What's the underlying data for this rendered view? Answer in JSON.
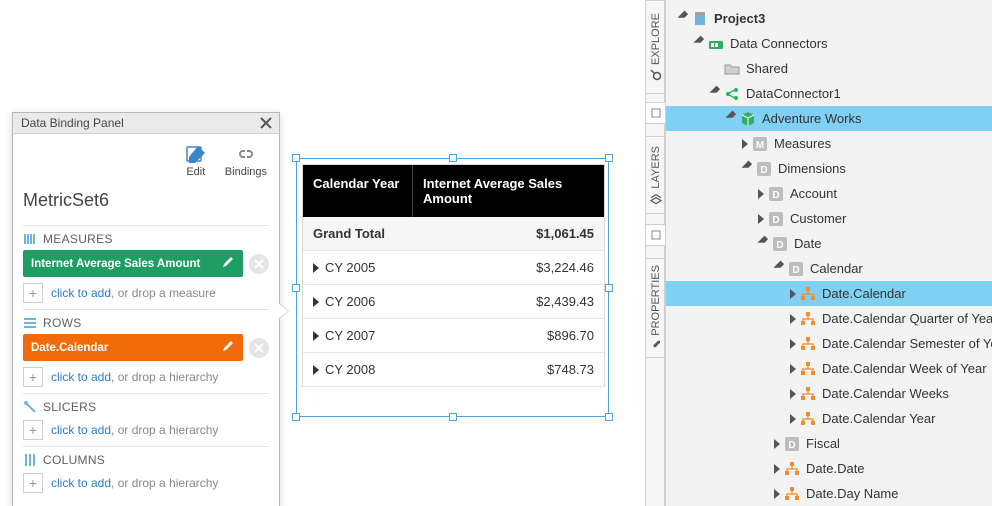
{
  "panel": {
    "title": "Data Binding Panel",
    "toolbar": {
      "edit": "Edit",
      "bindings": "Bindings"
    },
    "metricset": "MetricSet6",
    "measures_label": "MEASURES",
    "rows_label": "ROWS",
    "slicers_label": "SLICERS",
    "columns_label": "COLUMNS",
    "measure_chip": "Internet Average Sales Amount",
    "rows_chip": "Date.Calendar",
    "add_link": "click to add",
    "add_measure_tail": ", or drop a measure",
    "add_hierarchy_tail": ", or drop a hierarchy",
    "colors": {
      "measure_chip": "#1e9e63",
      "row_chip": "#f26a0a"
    }
  },
  "table": {
    "columns": [
      "Calendar Year",
      "Internet Average Sales Amount"
    ],
    "grand_total_label": "Grand Total",
    "grand_total_value": "$1,061.45",
    "rows": [
      {
        "label": "CY 2005",
        "value": "$3,224.46"
      },
      {
        "label": "CY 2006",
        "value": "$2,439.43"
      },
      {
        "label": "CY 2007",
        "value": "$896.70"
      },
      {
        "label": "CY 2008",
        "value": "$748.73"
      }
    ],
    "selection_color": "#4fa3e0"
  },
  "side_tabs": {
    "explore": "EXPLORE",
    "layers": "LAYERS",
    "properties": "PROPERTIES"
  },
  "tree": {
    "selected_bg": "#7fd0f2",
    "hierarchy_color": "#f28c28",
    "items": [
      {
        "depth": 0,
        "exp": "open",
        "icon": "project",
        "label": "Project3",
        "bold": true
      },
      {
        "depth": 1,
        "exp": "open",
        "icon": "connector",
        "label": "Data Connectors"
      },
      {
        "depth": 2,
        "exp": "none",
        "icon": "folder",
        "label": "Shared"
      },
      {
        "depth": 2,
        "exp": "open",
        "icon": "dc",
        "label": "DataConnector1"
      },
      {
        "depth": 3,
        "exp": "open",
        "icon": "cube",
        "label": "Adventure Works",
        "selected": true
      },
      {
        "depth": 4,
        "exp": "closed",
        "icon": "m",
        "label": "Measures"
      },
      {
        "depth": 4,
        "exp": "open",
        "icon": "d",
        "label": "Dimensions"
      },
      {
        "depth": 5,
        "exp": "closed",
        "icon": "d",
        "label": "Account"
      },
      {
        "depth": 5,
        "exp": "closed",
        "icon": "d",
        "label": "Customer"
      },
      {
        "depth": 5,
        "exp": "open",
        "icon": "d",
        "label": "Date"
      },
      {
        "depth": 6,
        "exp": "open",
        "icon": "d",
        "label": "Calendar"
      },
      {
        "depth": 7,
        "exp": "closed",
        "icon": "hier",
        "label": "Date.Calendar",
        "selected": true
      },
      {
        "depth": 7,
        "exp": "closed",
        "icon": "hier",
        "label": "Date.Calendar Quarter of Year"
      },
      {
        "depth": 7,
        "exp": "closed",
        "icon": "hier",
        "label": "Date.Calendar Semester of Year"
      },
      {
        "depth": 7,
        "exp": "closed",
        "icon": "hier",
        "label": "Date.Calendar Week of Year"
      },
      {
        "depth": 7,
        "exp": "closed",
        "icon": "hier",
        "label": "Date.Calendar Weeks"
      },
      {
        "depth": 7,
        "exp": "closed",
        "icon": "hier",
        "label": "Date.Calendar Year"
      },
      {
        "depth": 6,
        "exp": "closed",
        "icon": "d",
        "label": "Fiscal"
      },
      {
        "depth": 6,
        "exp": "closed",
        "icon": "hier",
        "label": "Date.Date"
      },
      {
        "depth": 6,
        "exp": "closed",
        "icon": "hier",
        "label": "Date.Day Name"
      }
    ]
  }
}
